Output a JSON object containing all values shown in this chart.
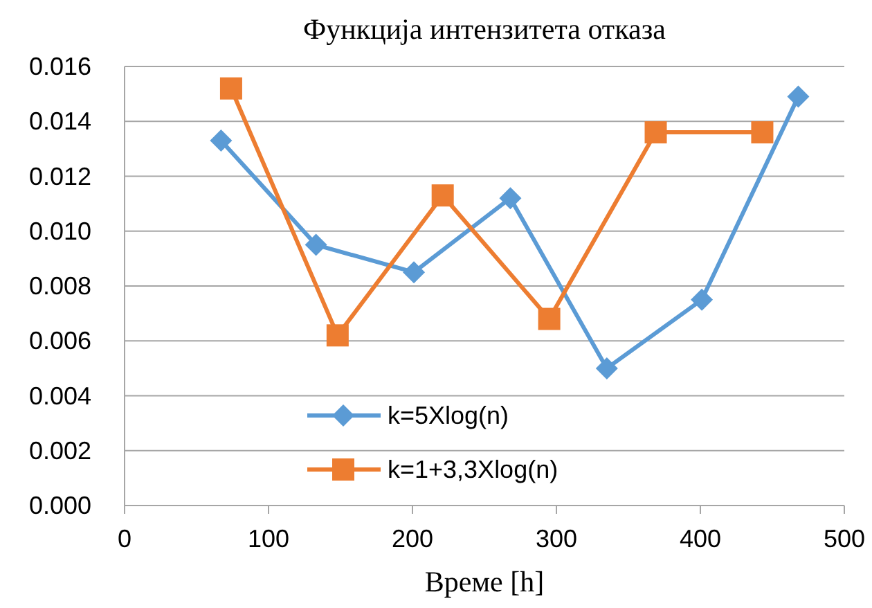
{
  "chart_data": {
    "type": "line",
    "title": "Функција интензитета отказа",
    "xlabel": "Време [h]",
    "xlim": [
      0,
      500
    ],
    "xticks": [
      0,
      100,
      200,
      300,
      400,
      500
    ],
    "ylim": [
      0,
      0.016
    ],
    "yticks": [
      {
        "value": 0,
        "label": "0.000"
      },
      {
        "value": 0.002,
        "label": "0.002"
      },
      {
        "value": 0.004,
        "label": "0.004"
      },
      {
        "value": 0.006,
        "label": "0.006"
      },
      {
        "value": 0.008,
        "label": "0.008"
      },
      {
        "value": 0.01,
        "label": "0.010"
      },
      {
        "value": 0.012,
        "label": "0.012"
      },
      {
        "value": 0.014,
        "label": "0.014"
      },
      {
        "value": 0.016,
        "label": "0.016"
      }
    ],
    "grid": "y",
    "legend": "bottom",
    "series": [
      {
        "name": "k=5Xlog(n)",
        "color": "#5b9bd5",
        "marker": "diamond",
        "x": [
          67,
          133,
          201,
          268,
          335,
          401,
          468
        ],
        "values": [
          0.0133,
          0.0095,
          0.0085,
          0.0112,
          0.005,
          0.0075,
          0.0149
        ]
      },
      {
        "name": "k=1+3,3Xlog(n)",
        "color": "#ed7d31",
        "marker": "square",
        "x": [
          74,
          148,
          221,
          295,
          369,
          443
        ],
        "values": [
          0.0152,
          0.0062,
          0.0113,
          0.0068,
          0.0136,
          0.0136
        ]
      }
    ]
  }
}
